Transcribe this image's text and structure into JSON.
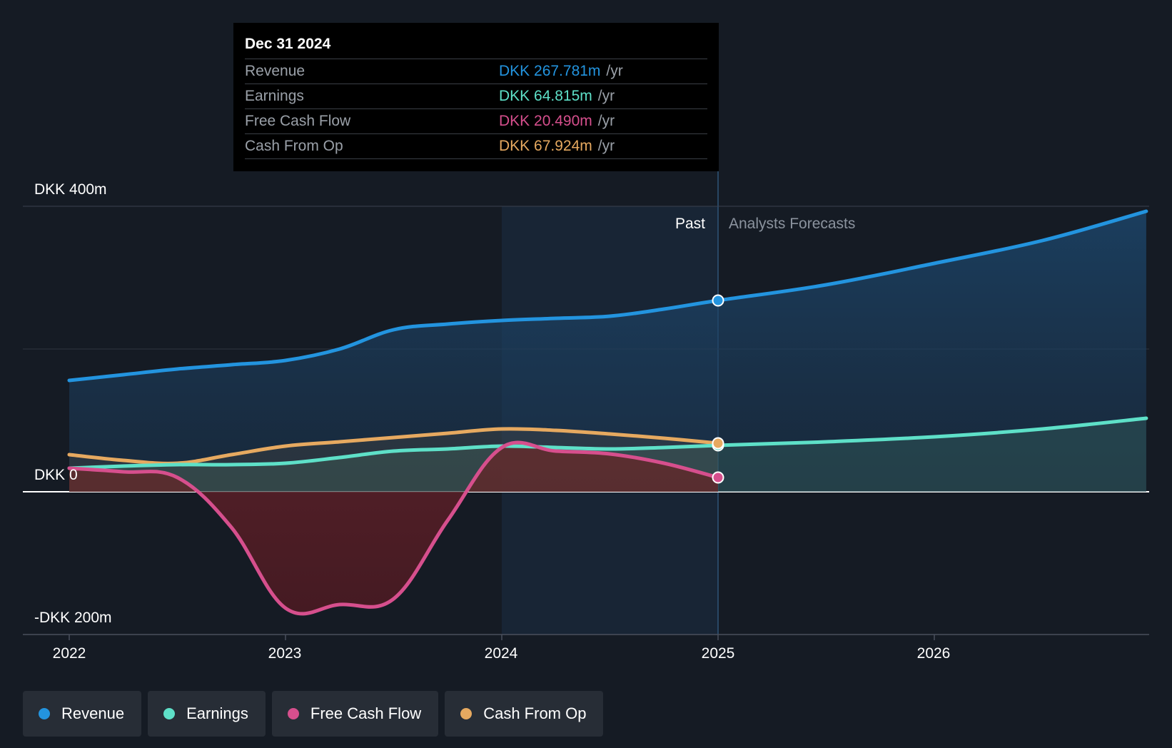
{
  "chart_data": {
    "type": "area",
    "y_unit": "DKK m",
    "ylim": [
      -200,
      400
    ],
    "y_ticks": [
      {
        "value": 400,
        "label": "DKK 400m"
      },
      {
        "value": 0,
        "label": "DKK 0"
      },
      {
        "value": -200,
        "label": "-DKK 200m"
      }
    ],
    "xlim": [
      2021.9,
      2026.98
    ],
    "x_ticks": [
      {
        "value": 2022,
        "label": "2022"
      },
      {
        "value": 2023,
        "label": "2023"
      },
      {
        "value": 2024,
        "label": "2024"
      },
      {
        "value": 2025,
        "label": "2025"
      },
      {
        "value": 2026,
        "label": "2026"
      }
    ],
    "highlight_start": 2024.0,
    "past_end": 2025.0,
    "region_labels": {
      "past": "Past",
      "forecast": "Analysts Forecasts"
    },
    "series": [
      {
        "name": "Revenue",
        "color": "#2394df",
        "points": [
          [
            2022.0,
            156
          ],
          [
            2022.25,
            164
          ],
          [
            2022.5,
            172
          ],
          [
            2022.75,
            178
          ],
          [
            2023.0,
            184
          ],
          [
            2023.25,
            200
          ],
          [
            2023.5,
            227
          ],
          [
            2023.75,
            235
          ],
          [
            2024.0,
            240
          ],
          [
            2024.25,
            243
          ],
          [
            2024.5,
            246
          ],
          [
            2024.75,
            256
          ],
          [
            2025.0,
            268
          ]
        ],
        "forecast": [
          [
            2025.0,
            268
          ],
          [
            2025.5,
            290
          ],
          [
            2026.0,
            320
          ],
          [
            2026.5,
            352
          ],
          [
            2026.98,
            393
          ]
        ]
      },
      {
        "name": "Earnings",
        "color": "#5ee0c8",
        "points": [
          [
            2022.0,
            33
          ],
          [
            2022.25,
            36
          ],
          [
            2022.5,
            38
          ],
          [
            2022.75,
            38
          ],
          [
            2023.0,
            40
          ],
          [
            2023.25,
            48
          ],
          [
            2023.5,
            57
          ],
          [
            2023.75,
            60
          ],
          [
            2024.0,
            64
          ],
          [
            2024.25,
            62
          ],
          [
            2024.5,
            60
          ],
          [
            2024.75,
            62
          ],
          [
            2025.0,
            65
          ]
        ],
        "forecast": [
          [
            2025.0,
            65
          ],
          [
            2025.5,
            70
          ],
          [
            2026.0,
            77
          ],
          [
            2026.5,
            88
          ],
          [
            2026.98,
            103
          ]
        ]
      },
      {
        "name": "Free Cash Flow",
        "color": "#d64f8d",
        "points": [
          [
            2022.0,
            33
          ],
          [
            2022.25,
            28
          ],
          [
            2022.5,
            20
          ],
          [
            2022.75,
            -50
          ],
          [
            2023.0,
            -163
          ],
          [
            2023.25,
            -158
          ],
          [
            2023.5,
            -150
          ],
          [
            2023.75,
            -40
          ],
          [
            2024.0,
            62
          ],
          [
            2024.25,
            57
          ],
          [
            2024.5,
            53
          ],
          [
            2024.75,
            40
          ],
          [
            2025.0,
            20
          ]
        ],
        "forecast": []
      },
      {
        "name": "Cash From Op",
        "color": "#e6a960",
        "points": [
          [
            2022.0,
            52
          ],
          [
            2022.25,
            44
          ],
          [
            2022.5,
            40
          ],
          [
            2022.75,
            52
          ],
          [
            2023.0,
            64
          ],
          [
            2023.25,
            70
          ],
          [
            2023.5,
            76
          ],
          [
            2023.75,
            82
          ],
          [
            2024.0,
            88
          ],
          [
            2024.25,
            86
          ],
          [
            2024.5,
            81
          ],
          [
            2024.75,
            75
          ],
          [
            2025.0,
            68
          ]
        ],
        "forecast": []
      }
    ]
  },
  "tooltip": {
    "date": "Dec 31 2024",
    "rows": [
      {
        "label": "Revenue",
        "value": "DKK 267.781m",
        "unit": "/yr",
        "color": "#2394df"
      },
      {
        "label": "Earnings",
        "value": "DKK 64.815m",
        "unit": "/yr",
        "color": "#5ee0c8"
      },
      {
        "label": "Free Cash Flow",
        "value": "DKK 20.490m",
        "unit": "/yr",
        "color": "#d64f8d"
      },
      {
        "label": "Cash From Op",
        "value": "DKK 67.924m",
        "unit": "/yr",
        "color": "#e6a960"
      }
    ]
  },
  "legend": [
    {
      "label": "Revenue",
      "color": "#2394df"
    },
    {
      "label": "Earnings",
      "color": "#5ee0c8"
    },
    {
      "label": "Free Cash Flow",
      "color": "#d64f8d"
    },
    {
      "label": "Cash From Op",
      "color": "#e6a960"
    }
  ]
}
